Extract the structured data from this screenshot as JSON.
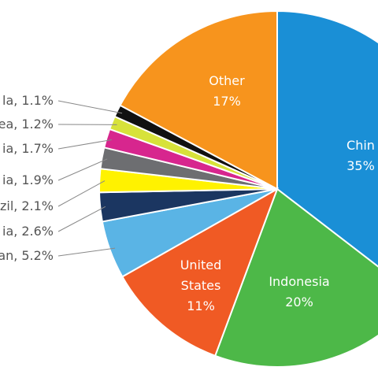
{
  "chart_data": {
    "type": "pie",
    "categories": [
      "Chin",
      "Indonesia",
      "United States",
      "an,",
      "ia,",
      "zil,",
      "ia,",
      "ia,",
      "ea,",
      "la,",
      "Other"
    ],
    "values": [
      35,
      20,
      11,
      5.2,
      2.6,
      2.1,
      1.9,
      1.7,
      1.2,
      1.1,
      17
    ],
    "value_labels": [
      "35%",
      "20%",
      "11%",
      "5.2%",
      "2.6%",
      "2.1%",
      "1.9%",
      "1.7%",
      "1.2%",
      "1.1%",
      "17%"
    ],
    "colors": [
      "#1a8fd6",
      "#4db848",
      "#f05a24",
      "#5ab4e5",
      "#1b3661",
      "#fff200",
      "#6d6e71",
      "#d7268e",
      "#d7e23a",
      "#111111",
      "#f7941d"
    ]
  }
}
